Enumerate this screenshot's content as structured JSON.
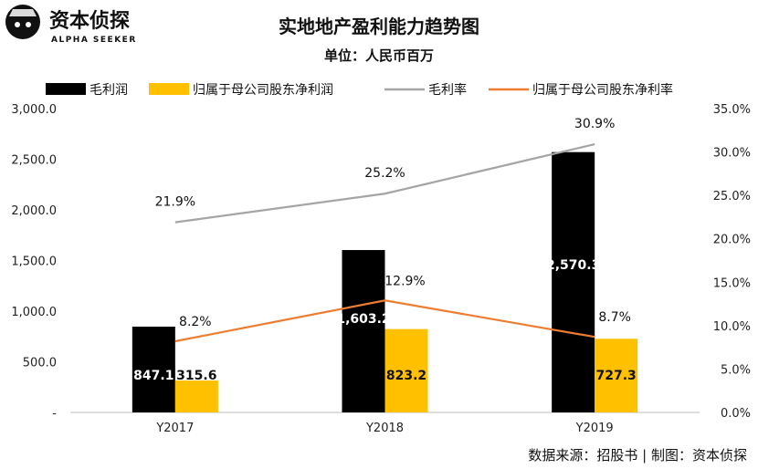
{
  "brand": {
    "name": "资本侦探",
    "tagline": "ALPHA SEEKER"
  },
  "chart_data": {
    "type": "bar",
    "title": "实地地产盈利能力趋势图",
    "subtitle": "单位：人民币百万",
    "categories": [
      "Y2017",
      "Y2018",
      "Y2019"
    ],
    "series": [
      {
        "name": "毛利润",
        "kind": "bar",
        "axis": "left",
        "color": "#000000",
        "values": [
          847.1,
          1603.2,
          2570.3
        ],
        "labels": [
          "847.1",
          "1,603.2",
          "2,570.3"
        ]
      },
      {
        "name": "归属于母公司股东净利润",
        "kind": "bar",
        "axis": "left",
        "color": "#FFC000",
        "values": [
          315.6,
          823.2,
          727.3
        ],
        "labels": [
          "315.6",
          "823.2",
          "727.3"
        ]
      },
      {
        "name": "毛利率",
        "kind": "line",
        "axis": "right",
        "color": "#A5A5A5",
        "values": [
          21.9,
          25.2,
          30.9
        ],
        "labels": [
          "21.9%",
          "25.2%",
          "30.9%"
        ]
      },
      {
        "name": "归属于母公司股东净利率",
        "kind": "line",
        "axis": "right",
        "color": "#ED7D31",
        "values": [
          8.2,
          12.9,
          8.7
        ],
        "labels": [
          "8.2%",
          "12.9%",
          "8.7%"
        ]
      }
    ],
    "y_left": {
      "ylim": [
        0,
        3000
      ],
      "ticks": [
        0,
        500,
        1000,
        1500,
        2000,
        2500,
        3000
      ],
      "tick_labels": [
        "-",
        "500.0",
        "1,000.0",
        "1,500.0",
        "2,000.0",
        "2,500.0",
        "3,000.0"
      ]
    },
    "y_right": {
      "ylim": [
        0,
        35
      ],
      "ticks": [
        0,
        5,
        10,
        15,
        20,
        25,
        30,
        35
      ],
      "tick_labels": [
        "0.0%",
        "5.0%",
        "10.0%",
        "15.0%",
        "20.0%",
        "25.0%",
        "30.0%",
        "35.0%"
      ]
    },
    "grid": false,
    "legend_position": "top"
  },
  "source_note": "数据来源：招股书 | 制图：资本侦探"
}
